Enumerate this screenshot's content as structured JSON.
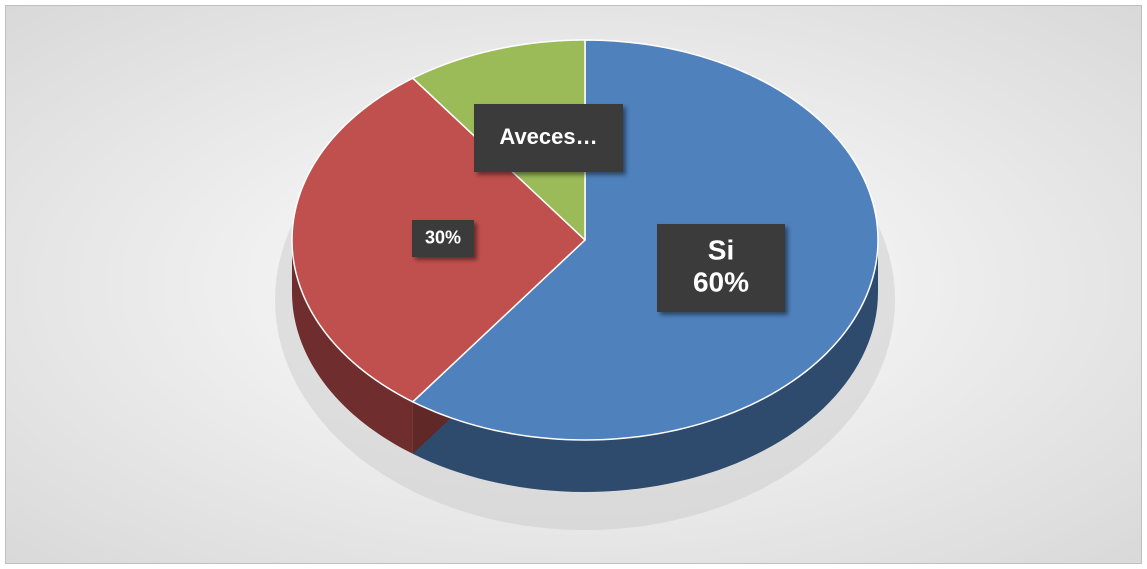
{
  "chart_data": {
    "type": "pie",
    "categories": [
      "Si",
      null,
      "Aveces…"
    ],
    "values": [
      60,
      30,
      10
    ],
    "value_labels": [
      "60%",
      "30%",
      null
    ],
    "colors": [
      "#4f81bd",
      "#c0504d",
      "#9bbb59"
    ],
    "start_angle": 0,
    "direction": "clockwise",
    "three_d": true
  }
}
